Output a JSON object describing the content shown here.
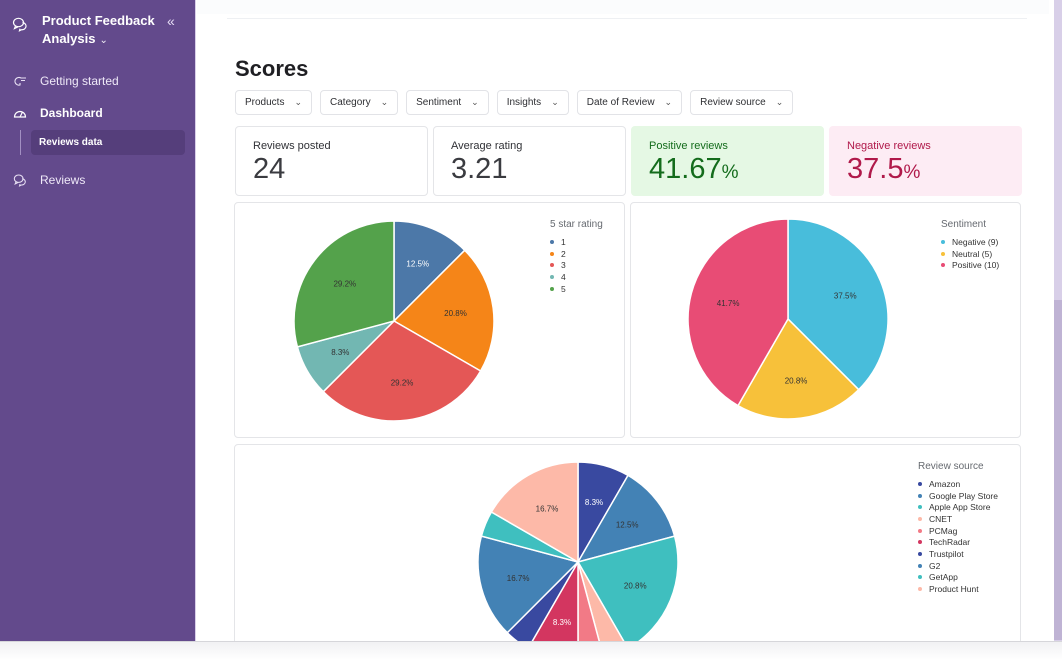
{
  "sidebar": {
    "app_title_line1": "Product Feedback",
    "app_title_line2": "Analysis",
    "app_chevron": "⌄",
    "collapse_icon": "«",
    "items": [
      {
        "label": "Getting started",
        "icon": "hand-pointer-icon"
      },
      {
        "label": "Dashboard",
        "icon": "gauge-icon"
      },
      {
        "label": "Reviews",
        "icon": "chat-bubbles-icon"
      }
    ],
    "sub_items": [
      {
        "label": "Reviews data"
      }
    ]
  },
  "main": {
    "title": "Scores",
    "filters": [
      {
        "label": "Products"
      },
      {
        "label": "Category"
      },
      {
        "label": "Sentiment"
      },
      {
        "label": "Insights"
      },
      {
        "label": "Date of Review"
      },
      {
        "label": "Review source"
      }
    ],
    "kpis": [
      {
        "label": "Reviews posted",
        "value": "24",
        "suffix": ""
      },
      {
        "label": "Average rating",
        "value": "3.21",
        "suffix": ""
      },
      {
        "label": "Positive reviews",
        "value": "41.67",
        "suffix": "%"
      },
      {
        "label": "Negative reviews",
        "value": "37.5",
        "suffix": "%"
      }
    ]
  },
  "chart_data": [
    {
      "type": "pie",
      "title": "5 star rating",
      "legend_position": "top-right",
      "categories": [
        "1",
        "2",
        "3",
        "4",
        "5"
      ],
      "values": [
        3,
        5,
        7,
        2,
        7
      ],
      "labels": [
        "12.5%",
        "20.8%",
        "29.2%",
        "8.3%",
        "29.2%"
      ],
      "colors": [
        "#4c78a8",
        "#f58518",
        "#e45756",
        "#72b7b2",
        "#54a24b"
      ],
      "label_colors": [
        "#ffffff",
        "#333333",
        "#333333",
        "#333333",
        "#333333"
      ]
    },
    {
      "type": "pie",
      "title": "Sentiment",
      "legend_position": "top-right",
      "categories": [
        "Negative (9)",
        "Neutral (5)",
        "Positive (10)"
      ],
      "values": [
        9,
        5,
        10
      ],
      "labels": [
        "37.5%",
        "20.8%",
        "41.7%"
      ],
      "colors": [
        "#48bddb",
        "#f7c13a",
        "#e84c75"
      ],
      "label_colors": [
        "#333333",
        "#333333",
        "#333333"
      ]
    },
    {
      "type": "pie",
      "title": "Review source",
      "legend_position": "top-right",
      "categories": [
        "Amazon",
        "Google Play Store",
        "Apple App Store",
        "CNET",
        "PCMag",
        "TechRadar",
        "Trustpilot",
        "G2",
        "GetApp",
        "Product Hunt"
      ],
      "values": [
        2,
        3,
        5,
        1,
        1,
        2,
        1,
        4,
        1,
        4
      ],
      "labels": [
        "8.3%",
        "12.5%",
        "20.8%",
        "",
        "",
        "8.3%",
        "",
        "16.7%",
        "",
        "16.7%"
      ],
      "colors": [
        "#3949a0",
        "#4382b5",
        "#3fbfbf",
        "#fdb9a8",
        "#f27a86",
        "#d33660",
        "#3949a0",
        "#4382b5",
        "#3fbfbf",
        "#fdb9a8"
      ],
      "label_colors": [
        "#ffffff",
        "#333333",
        "#333333",
        "#333333",
        "#333333",
        "#ffffff",
        "#ffffff",
        "#333333",
        "#333333",
        "#333333"
      ]
    }
  ]
}
